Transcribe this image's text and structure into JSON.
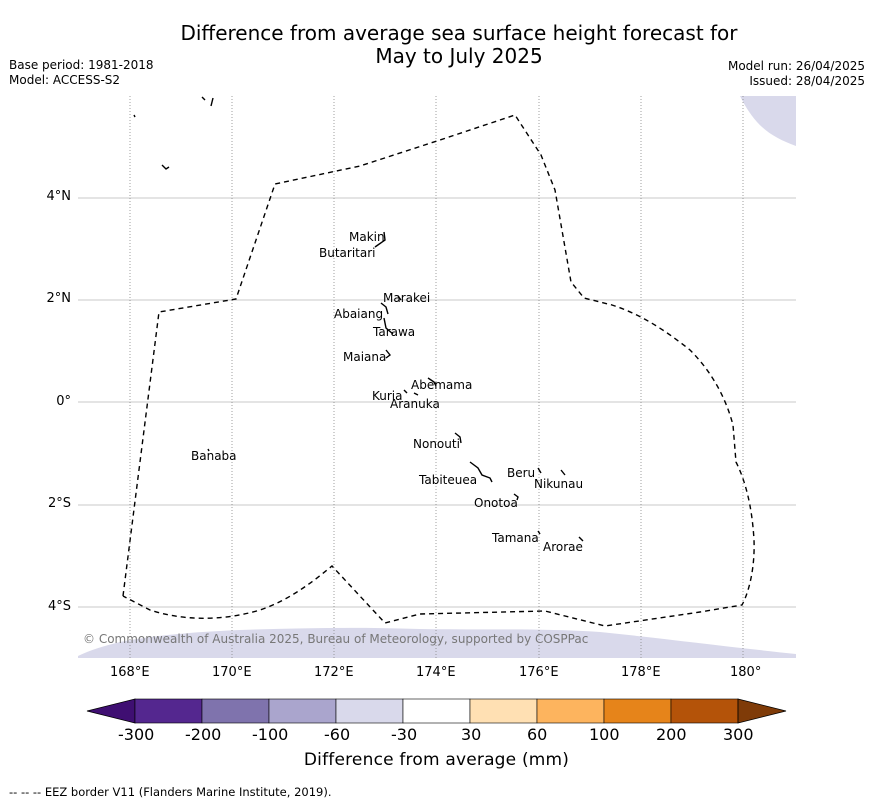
{
  "title_line1": "Difference from average sea surface height forecast for",
  "title_line2": "May to July 2025",
  "base_period": "Base period: 1981-2018",
  "model": "Model: ACCESS-S2",
  "model_run": "Model run: 26/04/2025",
  "issued": "Issued: 28/04/2025",
  "copyright": "© Commonwealth of Australia 2025, Bureau of Meteorology, supported by COSPPac",
  "footer": "--  --  -- EEZ border V11 (Flanders Marine Institute, 2019).",
  "lon_labels": [
    "168°E",
    "170°E",
    "172°E",
    "174°E",
    "176°E",
    "178°E",
    "180°"
  ],
  "lat_labels": [
    "4°N",
    "2°N",
    "0°",
    "2°S",
    "4°S"
  ],
  "islands": [
    "Makin",
    "Butaritari",
    "Marakei",
    "Abaiang",
    "Tarawa",
    "Maiana",
    "Abemama",
    "Kuria",
    "Aranuka",
    "Nonouti",
    "Banaba",
    "Beru",
    "Nikunau",
    "Tabiteuea",
    "Onotoa",
    "Tamana",
    "Arorae"
  ],
  "colorbar": {
    "title": "Difference from average (mm)",
    "ticks": [
      "-300",
      "-200",
      "-100",
      "-60",
      "-30",
      "30",
      "60",
      "100",
      "200",
      "300"
    ],
    "colors": [
      "#3f0f72",
      "#54278f",
      "#7f73ad",
      "#aaa5cd",
      "#d9d9eb",
      "#ffffff",
      "#ffe0b3",
      "#fdb45e",
      "#e6841a",
      "#b45309",
      "#7f3b08"
    ]
  },
  "field_colors": {
    "low": "#d9d9eb"
  }
}
